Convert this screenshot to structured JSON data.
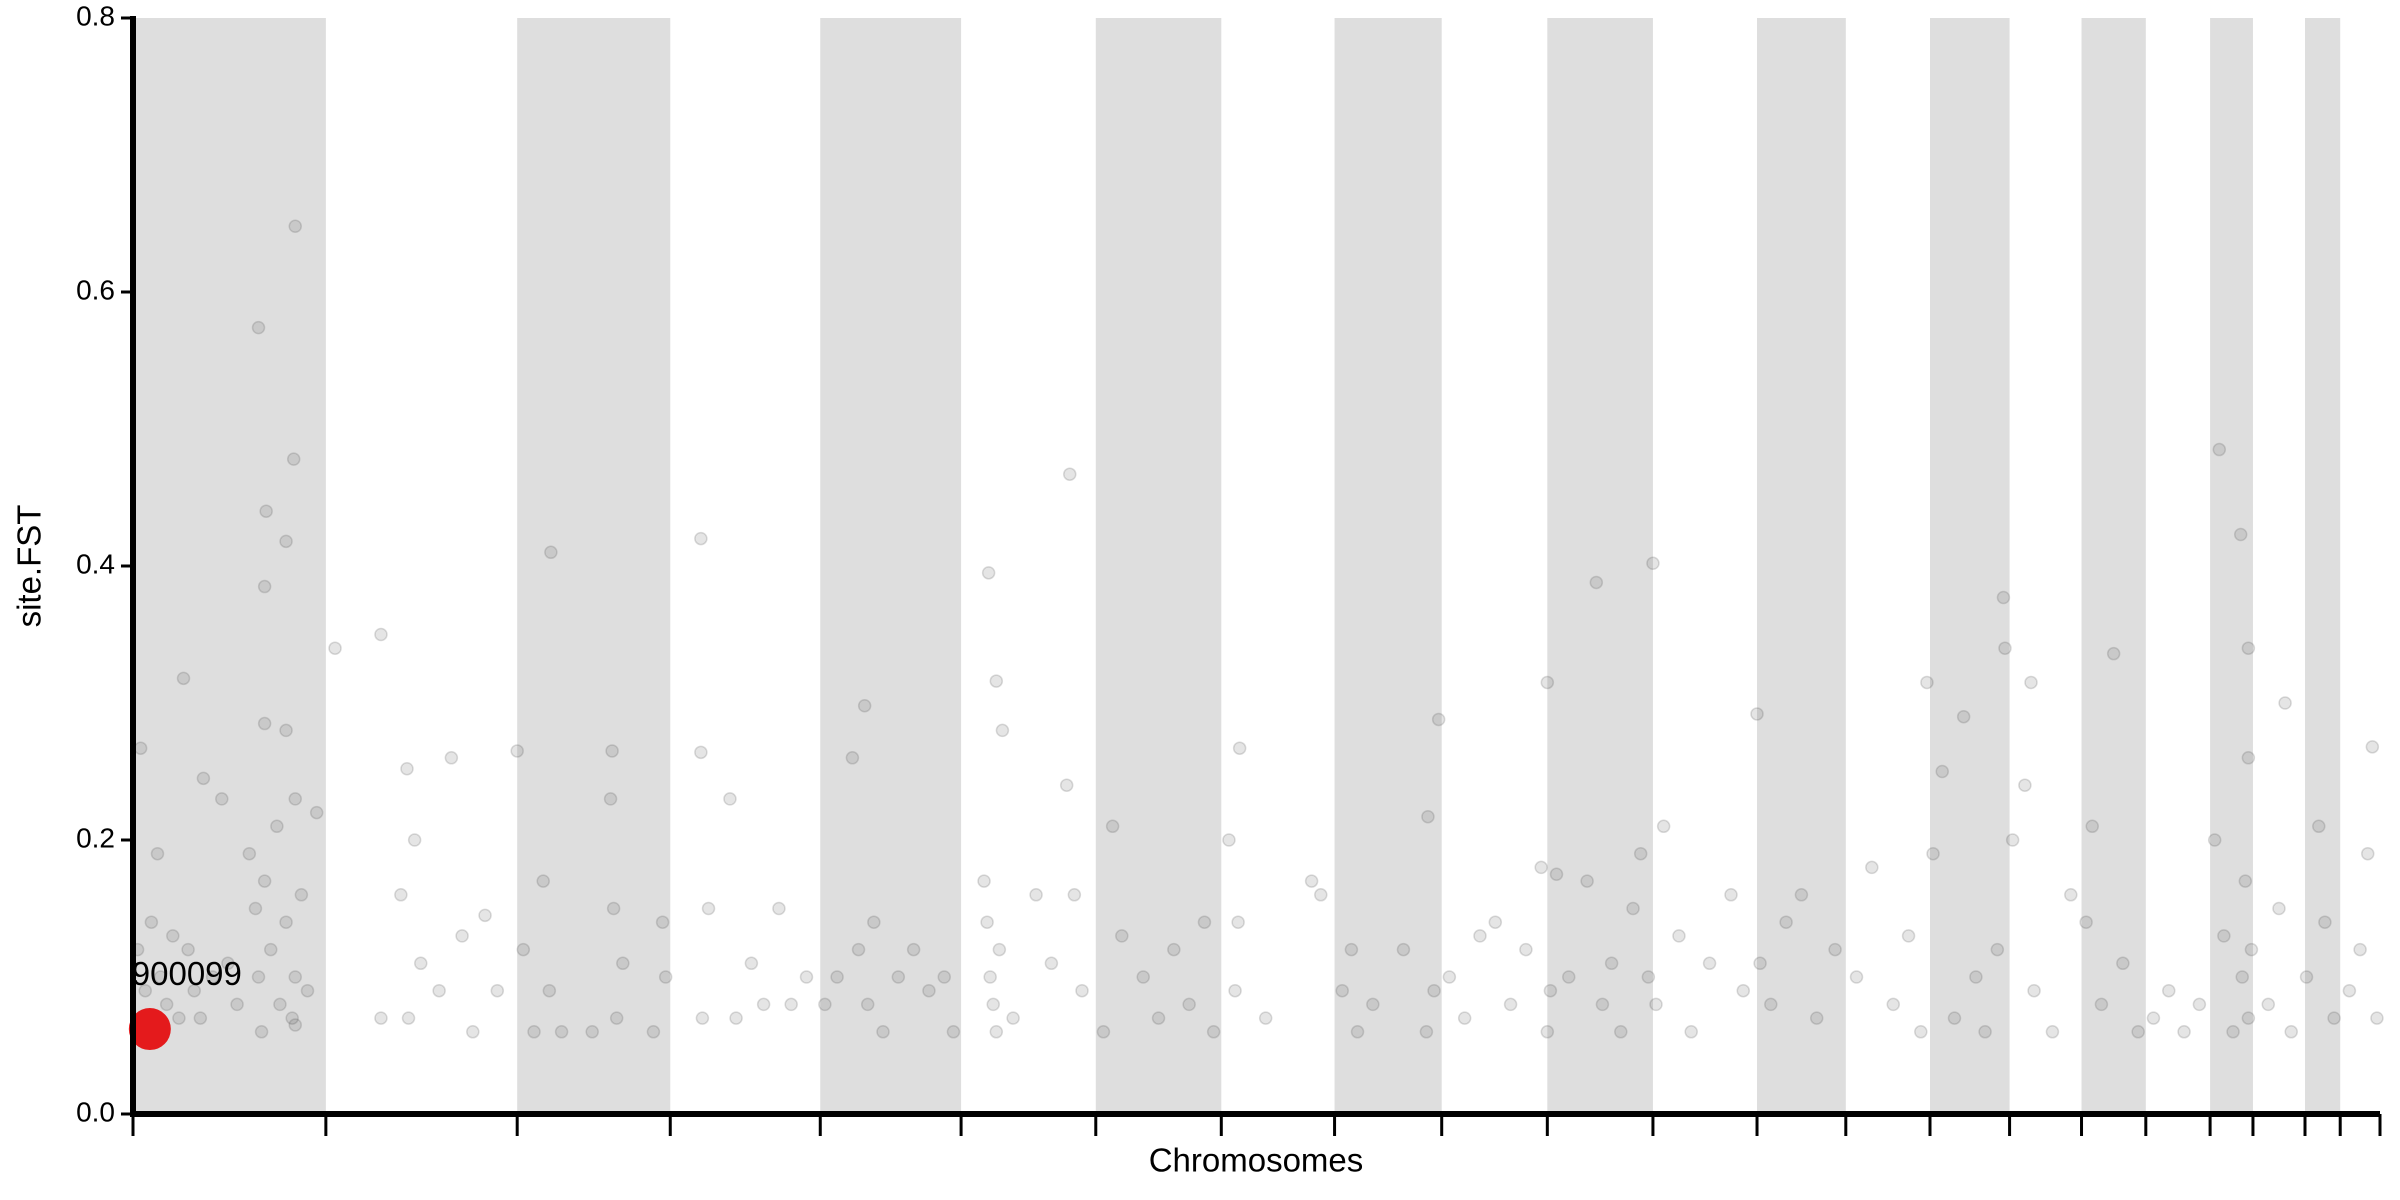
{
  "chart_data": {
    "type": "scatter",
    "x_label": "Chromosomes",
    "y_label": "site.FST",
    "xlim": [
      0,
      1468
    ],
    "ylim": [
      0,
      0.8
    ],
    "yticks": [
      {
        "value": 0,
        "label": "0.0"
      },
      0.2,
      0.4,
      0.6,
      0.8
    ],
    "xticks": [
      0,
      126,
      251,
      351,
      449,
      541,
      629,
      711,
      785,
      855,
      924,
      993,
      1061,
      1119,
      1174,
      1226,
      1273,
      1315,
      1357,
      1385,
      1419,
      1442,
      1468
    ],
    "band_color": "#dedede",
    "color": "#505050",
    "x": [
      106,
      82,
      105,
      87,
      100,
      86,
      86,
      100,
      132,
      162,
      273,
      371,
      612,
      559,
      956,
      993,
      1363,
      1377,
      1222,
      1294,
      1223,
      1406,
      1463,
      478,
      564,
      853,
      1061,
      924,
      179,
      313,
      33,
      5,
      251,
      371,
      723,
      846,
      1240,
      1382,
      1172,
      3,
      8,
      12,
      16,
      18,
      22,
      26,
      30,
      36,
      40,
      44,
      46,
      52,
      58,
      62,
      68,
      76,
      80,
      82,
      84,
      86,
      90,
      94,
      96,
      100,
      104,
      106,
      106,
      106,
      110,
      114,
      120,
      162,
      175,
      180,
      184,
      188,
      200,
      208,
      215,
      222,
      230,
      238,
      255,
      262,
      268,
      272,
      280,
      300,
      312,
      314,
      316,
      320,
      340,
      346,
      348,
      372,
      376,
      390,
      394,
      404,
      412,
      422,
      430,
      440,
      452,
      460,
      470,
      474,
      480,
      484,
      490,
      500,
      510,
      520,
      530,
      536,
      556,
      558,
      560,
      562,
      564,
      566,
      568,
      575,
      590,
      600,
      610,
      615,
      620,
      634,
      640,
      646,
      660,
      670,
      680,
      690,
      700,
      706,
      716,
      720,
      722,
      740,
      770,
      776,
      790,
      796,
      800,
      810,
      830,
      845,
      850,
      860,
      870,
      880,
      890,
      900,
      910,
      920,
      924,
      926,
      930,
      938,
      950,
      960,
      966,
      972,
      980,
      985,
      990,
      995,
      1000,
      1010,
      1018,
      1030,
      1044,
      1052,
      1063,
      1070,
      1080,
      1090,
      1100,
      1112,
      1126,
      1136,
      1150,
      1160,
      1168,
      1176,
      1182,
      1190,
      1196,
      1204,
      1210,
      1218,
      1228,
      1236,
      1242,
      1254,
      1266,
      1276,
      1280,
      1286,
      1300,
      1310,
      1320,
      1330,
      1340,
      1350,
      1360,
      1366,
      1372,
      1378,
      1380,
      1382,
      1382,
      1384,
      1395,
      1402,
      1410,
      1420,
      1428,
      1432,
      1438,
      1448,
      1455,
      1460,
      1466
    ],
    "y": [
      0.648,
      0.574,
      0.478,
      0.44,
      0.418,
      0.385,
      0.285,
      0.28,
      0.34,
      0.35,
      0.41,
      0.42,
      0.467,
      0.395,
      0.388,
      0.402,
      0.485,
      0.423,
      0.377,
      0.336,
      0.34,
      0.3,
      0.268,
      0.298,
      0.316,
      0.288,
      0.292,
      0.315,
      0.252,
      0.265,
      0.318,
      0.267,
      0.265,
      0.264,
      0.267,
      0.217,
      0.315,
      0.34,
      0.315,
      0.12,
      0.09,
      0.14,
      0.19,
      0.1,
      0.08,
      0.13,
      0.07,
      0.12,
      0.09,
      0.07,
      0.245,
      0.1,
      0.23,
      0.11,
      0.08,
      0.19,
      0.15,
      0.1,
      0.06,
      0.17,
      0.12,
      0.21,
      0.08,
      0.14,
      0.07,
      0.23,
      0.1,
      0.065,
      0.16,
      0.09,
      0.22,
      0.07,
      0.16,
      0.07,
      0.2,
      0.11,
      0.09,
      0.26,
      0.13,
      0.06,
      0.145,
      0.09,
      0.12,
      0.06,
      0.17,
      0.09,
      0.06,
      0.06,
      0.23,
      0.15,
      0.07,
      0.11,
      0.06,
      0.14,
      0.1,
      0.07,
      0.15,
      0.23,
      0.07,
      0.11,
      0.08,
      0.15,
      0.08,
      0.1,
      0.08,
      0.1,
      0.26,
      0.12,
      0.08,
      0.14,
      0.06,
      0.1,
      0.12,
      0.09,
      0.1,
      0.06,
      0.17,
      0.14,
      0.1,
      0.08,
      0.06,
      0.12,
      0.28,
      0.07,
      0.16,
      0.11,
      0.24,
      0.16,
      0.09,
      0.06,
      0.21,
      0.13,
      0.1,
      0.07,
      0.12,
      0.08,
      0.14,
      0.06,
      0.2,
      0.09,
      0.14,
      0.07,
      0.17,
      0.16,
      0.09,
      0.12,
      0.06,
      0.08,
      0.12,
      0.06,
      0.09,
      0.1,
      0.07,
      0.13,
      0.14,
      0.08,
      0.12,
      0.18,
      0.06,
      0.09,
      0.175,
      0.1,
      0.17,
      0.08,
      0.11,
      0.06,
      0.15,
      0.19,
      0.1,
      0.08,
      0.21,
      0.13,
      0.06,
      0.11,
      0.16,
      0.09,
      0.11,
      0.08,
      0.14,
      0.16,
      0.07,
      0.12,
      0.1,
      0.18,
      0.08,
      0.13,
      0.06,
      0.19,
      0.25,
      0.07,
      0.29,
      0.1,
      0.06,
      0.12,
      0.2,
      0.24,
      0.09,
      0.06,
      0.16,
      0.14,
      0.21,
      0.08,
      0.11,
      0.06,
      0.07,
      0.09,
      0.06,
      0.08,
      0.2,
      0.13,
      0.06,
      0.1,
      0.17,
      0.26,
      0.07,
      0.12,
      0.08,
      0.15,
      0.06,
      0.1,
      0.21,
      0.14,
      0.07,
      0.09,
      0.12,
      0.19,
      0.07
    ],
    "highlight": {
      "x": 11,
      "y": 0.062,
      "label": "900099",
      "color": "#e41a1c"
    }
  }
}
